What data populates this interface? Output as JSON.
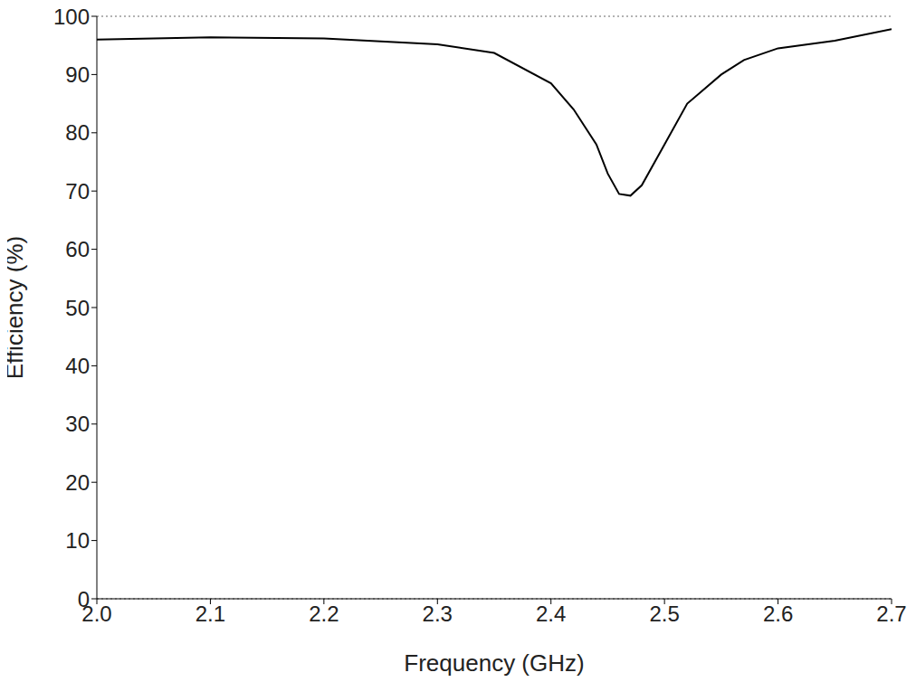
{
  "chart_data": {
    "type": "line",
    "x_label": "Frequency (GHz)",
    "y_label": "Efficiency (%)",
    "x": [
      2.0,
      2.05,
      2.1,
      2.2,
      2.3,
      2.35,
      2.4,
      2.42,
      2.44,
      2.45,
      2.46,
      2.47,
      2.48,
      2.5,
      2.52,
      2.55,
      2.57,
      2.6,
      2.65,
      2.7
    ],
    "values": [
      96,
      96.2,
      96.4,
      96.2,
      95.2,
      93.7,
      88.5,
      84,
      78,
      73,
      69.5,
      69.2,
      71,
      78,
      85,
      90,
      92.5,
      94.5,
      95.8,
      97.8
    ],
    "color": "#000000",
    "xlim": [
      2.0,
      2.7
    ],
    "xticks": [
      {
        "value": 2.0,
        "label": "2.0"
      },
      2.1,
      2.2,
      2.3,
      2.4,
      2.5,
      2.6,
      2.7
    ],
    "ylim": [
      0,
      100
    ],
    "yticks": [
      0,
      10,
      20,
      30,
      40,
      50,
      60,
      70,
      80,
      90,
      100
    ],
    "grid": true
  }
}
